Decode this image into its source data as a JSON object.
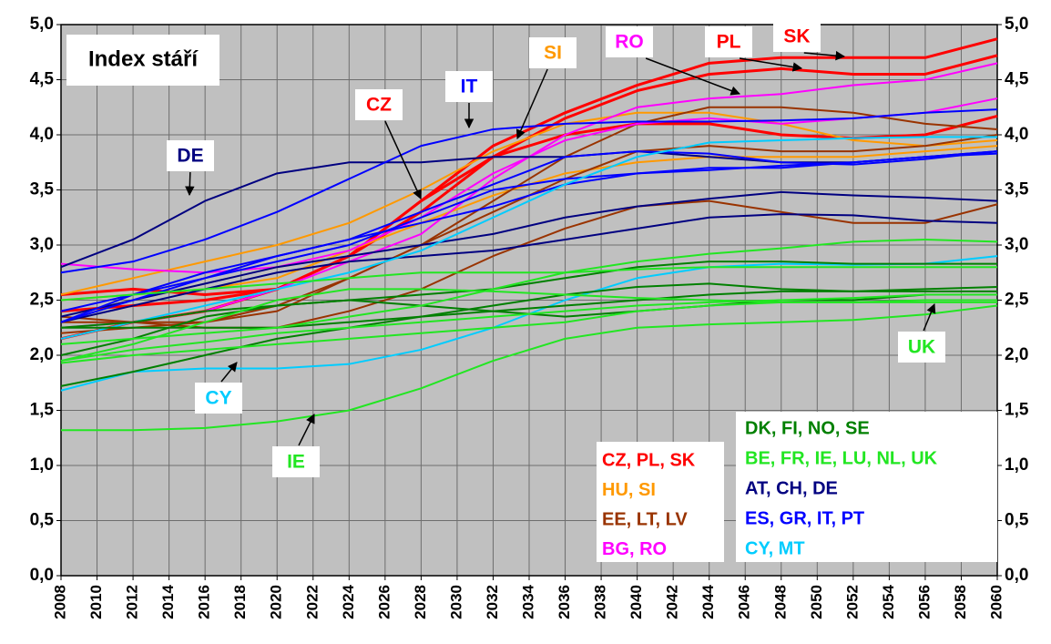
{
  "chart_data": {
    "type": "line",
    "title": "Index stáří",
    "x": [
      2008,
      2012,
      2016,
      2020,
      2024,
      2028,
      2032,
      2036,
      2040,
      2044,
      2048,
      2052,
      2056,
      2060
    ],
    "xlim": [
      2008,
      2060
    ],
    "xticks": [
      2008,
      2010,
      2012,
      2014,
      2016,
      2018,
      2020,
      2022,
      2024,
      2026,
      2028,
      2030,
      2032,
      2034,
      2036,
      2038,
      2040,
      2042,
      2044,
      2046,
      2048,
      2050,
      2052,
      2054,
      2056,
      2058,
      2060
    ],
    "ylim": [
      0,
      5
    ],
    "yticks": [
      {
        "value": 0,
        "label": "0,0"
      },
      {
        "value": 0.5,
        "label": "0,5"
      },
      {
        "value": 1,
        "label": "1,0"
      },
      {
        "value": 1.5,
        "label": "1,5"
      },
      {
        "value": 2,
        "label": "2,0"
      },
      {
        "value": 2.5,
        "label": "2,5"
      },
      {
        "value": 3,
        "label": "3,0"
      },
      {
        "value": 3.5,
        "label": "3,5"
      },
      {
        "value": 4,
        "label": "4,0"
      },
      {
        "value": 4.5,
        "label": "4,5"
      },
      {
        "value": 5,
        "label": "5,0"
      }
    ],
    "grid": true,
    "series": [
      {
        "name": "SK",
        "color": "#ff0000",
        "values": [
          2.4,
          2.45,
          2.5,
          2.6,
          2.9,
          3.4,
          3.9,
          4.2,
          4.45,
          4.65,
          4.7,
          4.7,
          4.7,
          4.87
        ]
      },
      {
        "name": "PL",
        "color": "#ff0000",
        "values": [
          2.15,
          2.3,
          2.4,
          2.6,
          2.9,
          3.3,
          3.8,
          4.15,
          4.4,
          4.55,
          4.6,
          4.55,
          4.55,
          4.72
        ]
      },
      {
        "name": "CZ",
        "color": "#ff0000",
        "values": [
          2.55,
          2.6,
          2.55,
          2.6,
          2.9,
          3.4,
          3.8,
          4.0,
          4.1,
          4.1,
          4.0,
          3.97,
          4.0,
          4.17
        ]
      },
      {
        "name": "SI",
        "color": "#ff9900",
        "values": [
          2.55,
          2.7,
          2.85,
          3.0,
          3.2,
          3.5,
          3.85,
          4.1,
          4.2,
          4.2,
          4.1,
          3.95,
          3.9,
          3.95
        ]
      },
      {
        "color": "#ff9900",
        "values": [
          2.5,
          2.55,
          2.6,
          2.7,
          2.95,
          3.2,
          3.45,
          3.65,
          3.75,
          3.8,
          3.8,
          3.8,
          3.85,
          3.9
        ]
      },
      {
        "color": "#993300",
        "values": [
          2.35,
          2.3,
          2.3,
          2.4,
          2.7,
          3.0,
          3.4,
          3.8,
          4.1,
          4.25,
          4.25,
          4.2,
          4.1,
          4.05
        ]
      },
      {
        "color": "#993300",
        "values": [
          2.2,
          2.25,
          2.3,
          2.45,
          2.7,
          3.0,
          3.3,
          3.6,
          3.85,
          3.9,
          3.85,
          3.85,
          3.9,
          4.0
        ]
      },
      {
        "color": "#993300",
        "values": [
          2.3,
          2.3,
          2.25,
          2.25,
          2.4,
          2.6,
          2.9,
          3.15,
          3.35,
          3.4,
          3.3,
          3.2,
          3.2,
          3.37
        ]
      },
      {
        "name": "RO",
        "color": "#ff00ff",
        "values": [
          2.25,
          2.3,
          2.4,
          2.6,
          2.85,
          3.1,
          3.6,
          4.0,
          4.25,
          4.33,
          4.37,
          4.45,
          4.5,
          4.65
        ]
      },
      {
        "color": "#ff00ff",
        "values": [
          2.83,
          2.78,
          2.75,
          2.8,
          2.95,
          3.25,
          3.65,
          3.95,
          4.1,
          4.15,
          4.1,
          4.15,
          4.2,
          4.33
        ]
      },
      {
        "name": "DE",
        "color": "#000080",
        "values": [
          2.8,
          3.05,
          3.4,
          3.65,
          3.75,
          3.75,
          3.8,
          3.8,
          3.85,
          3.8,
          3.75,
          3.75,
          3.8,
          3.85
        ]
      },
      {
        "color": "#000080",
        "values": [
          2.35,
          2.5,
          2.65,
          2.8,
          2.9,
          3.0,
          3.1,
          3.25,
          3.35,
          3.42,
          3.48,
          3.45,
          3.43,
          3.4
        ]
      },
      {
        "color": "#000080",
        "values": [
          2.3,
          2.45,
          2.6,
          2.75,
          2.85,
          2.9,
          2.95,
          3.05,
          3.15,
          3.25,
          3.28,
          3.27,
          3.22,
          3.2
        ]
      },
      {
        "name": "IT",
        "color": "#0000ff",
        "values": [
          2.75,
          2.85,
          3.05,
          3.3,
          3.6,
          3.9,
          4.05,
          4.1,
          4.12,
          4.12,
          4.13,
          4.15,
          4.2,
          4.23
        ]
      },
      {
        "color": "#0000ff",
        "values": [
          2.3,
          2.5,
          2.7,
          2.9,
          3.05,
          3.3,
          3.55,
          3.8,
          3.85,
          3.83,
          3.75,
          3.73,
          3.78,
          3.85
        ]
      },
      {
        "color": "#0000ff",
        "values": [
          2.3,
          2.55,
          2.75,
          2.9,
          3.05,
          3.2,
          3.35,
          3.55,
          3.65,
          3.7,
          3.7,
          3.75,
          3.8,
          3.85
        ]
      },
      {
        "color": "#0000ff",
        "values": [
          2.4,
          2.55,
          2.7,
          2.85,
          3.0,
          3.25,
          3.5,
          3.6,
          3.65,
          3.68,
          3.72,
          3.75,
          3.8,
          3.83
        ]
      },
      {
        "name": "CY",
        "color": "#00ccff",
        "values": [
          1.68,
          1.85,
          1.88,
          1.88,
          1.92,
          2.05,
          2.25,
          2.5,
          2.7,
          2.8,
          2.83,
          2.82,
          2.83,
          2.9
        ]
      },
      {
        "color": "#00ccff",
        "values": [
          2.15,
          2.3,
          2.45,
          2.6,
          2.75,
          2.95,
          3.25,
          3.55,
          3.8,
          3.93,
          3.95,
          3.97,
          3.98,
          3.98
        ]
      },
      {
        "color": "#008000",
        "values": [
          2.25,
          2.3,
          2.4,
          2.45,
          2.5,
          2.55,
          2.6,
          2.7,
          2.8,
          2.85,
          2.85,
          2.83,
          2.83,
          2.83
        ]
      },
      {
        "color": "#008000",
        "values": [
          1.72,
          1.85,
          2.0,
          2.15,
          2.25,
          2.35,
          2.45,
          2.55,
          2.62,
          2.65,
          2.6,
          2.58,
          2.6,
          2.62
        ]
      },
      {
        "color": "#008000",
        "values": [
          2.25,
          2.25,
          2.25,
          2.25,
          2.3,
          2.35,
          2.4,
          2.45,
          2.5,
          2.55,
          2.58,
          2.58,
          2.58,
          2.58
        ]
      },
      {
        "color": "#008000",
        "values": [
          2.0,
          2.15,
          2.35,
          2.45,
          2.5,
          2.45,
          2.4,
          2.35,
          2.4,
          2.45,
          2.5,
          2.5,
          2.55,
          2.55
        ]
      },
      {
        "name": "IE",
        "color": "#22e622",
        "values": [
          1.32,
          1.32,
          1.34,
          1.4,
          1.5,
          1.7,
          1.95,
          2.15,
          2.25,
          2.28,
          2.3,
          2.32,
          2.37,
          2.45
        ]
      },
      {
        "name": "UK",
        "color": "#22e622",
        "values": [
          1.93,
          2.0,
          2.05,
          2.1,
          2.15,
          2.2,
          2.25,
          2.3,
          2.4,
          2.45,
          2.48,
          2.48,
          2.5,
          2.5
        ]
      },
      {
        "color": "#22e622",
        "values": [
          1.95,
          2.05,
          2.12,
          2.2,
          2.25,
          2.3,
          2.35,
          2.4,
          2.45,
          2.48,
          2.5,
          2.52,
          2.55,
          2.55
        ]
      },
      {
        "color": "#22e622",
        "values": [
          2.5,
          2.55,
          2.6,
          2.65,
          2.7,
          2.75,
          2.75,
          2.75,
          2.78,
          2.8,
          2.8,
          2.8,
          2.8,
          2.8
        ]
      },
      {
        "color": "#22e622",
        "values": [
          2.1,
          2.15,
          2.2,
          2.25,
          2.35,
          2.45,
          2.6,
          2.75,
          2.85,
          2.92,
          2.97,
          3.03,
          3.05,
          3.03
        ]
      },
      {
        "color": "#22e622",
        "values": [
          1.95,
          2.1,
          2.3,
          2.5,
          2.6,
          2.6,
          2.58,
          2.55,
          2.52,
          2.5,
          2.48,
          2.48,
          2.48,
          2.48
        ]
      }
    ],
    "legend": [
      {
        "label": "CZ, PL, SK",
        "color": "#ff0000"
      },
      {
        "label": "HU, SI",
        "color": "#ff9900"
      },
      {
        "label": "EE, LT, LV",
        "color": "#993300"
      },
      {
        "label": "BG, RO",
        "color": "#ff00ff"
      },
      {
        "label": "DK, FI, NO, SE",
        "color": "#008000"
      },
      {
        "label": "BE, FR, IE, LU, NL, UK",
        "color": "#22e622"
      },
      {
        "label": "AT, CH, DE",
        "color": "#000080"
      },
      {
        "label": "ES, GR, IT, PT",
        "color": "#0000ff"
      },
      {
        "label": "CY, MT",
        "color": "#00ccff"
      }
    ]
  }
}
